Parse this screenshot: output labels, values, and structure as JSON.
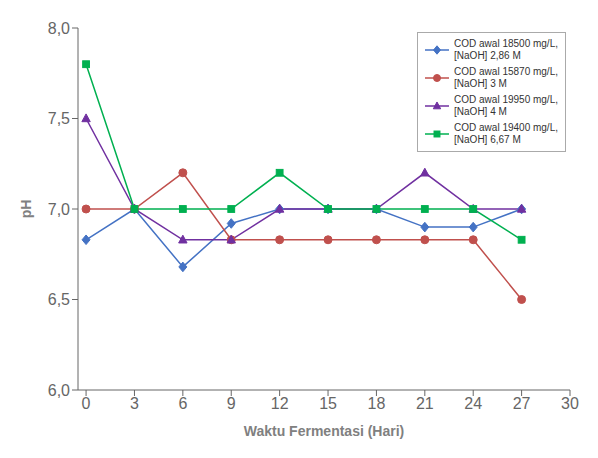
{
  "chart_data": {
    "type": "line",
    "xlabel": "Waktu Fermentasi (Hari)",
    "ylabel": "pH",
    "x": [
      0,
      3,
      6,
      9,
      12,
      15,
      18,
      21,
      24,
      27
    ],
    "xlim": [
      -0.5,
      30
    ],
    "ylim": [
      6.0,
      8.0
    ],
    "xticks": [
      0,
      3,
      6,
      9,
      12,
      15,
      18,
      21,
      24,
      27,
      30
    ],
    "yticks": [
      {
        "value": 6.0,
        "label": "6,0"
      },
      {
        "value": 6.5,
        "label": "6,5"
      },
      {
        "value": 7.0,
        "label": "7,0"
      },
      {
        "value": 7.5,
        "label": "7,5"
      },
      {
        "value": 8.0,
        "label": "8,0"
      }
    ],
    "series": [
      {
        "name": "COD awal 18500 mg/L,\n[NaOH] 2,86 M",
        "color": "#4472C4",
        "marker": "diamond",
        "values": [
          6.83,
          7.0,
          6.68,
          6.92,
          7.0,
          7.0,
          7.0,
          6.9,
          6.9,
          7.0
        ]
      },
      {
        "name": "COD awal 15870 mg/L,\n[NaOH] 3 M",
        "color": "#C0504D",
        "marker": "circle",
        "values": [
          7.0,
          7.0,
          7.2,
          6.83,
          6.83,
          6.83,
          6.83,
          6.83,
          6.83,
          6.5
        ]
      },
      {
        "name": "COD awal 19950 mg/L,\n[NaOH] 4 M",
        "color": "#7030A0",
        "marker": "triangle",
        "values": [
          7.5,
          7.0,
          6.83,
          6.83,
          7.0,
          7.0,
          7.0,
          7.2,
          7.0,
          7.0
        ]
      },
      {
        "name": "COD awal 19400 mg/L,\n[NaOH] 6,67 M",
        "color": "#00B050",
        "marker": "square",
        "values": [
          7.8,
          7.0,
          7.0,
          7.0,
          7.2,
          7.0,
          7.0,
          7.0,
          7.0,
          6.83
        ]
      }
    ],
    "legend": "upper right",
    "grid": false
  }
}
